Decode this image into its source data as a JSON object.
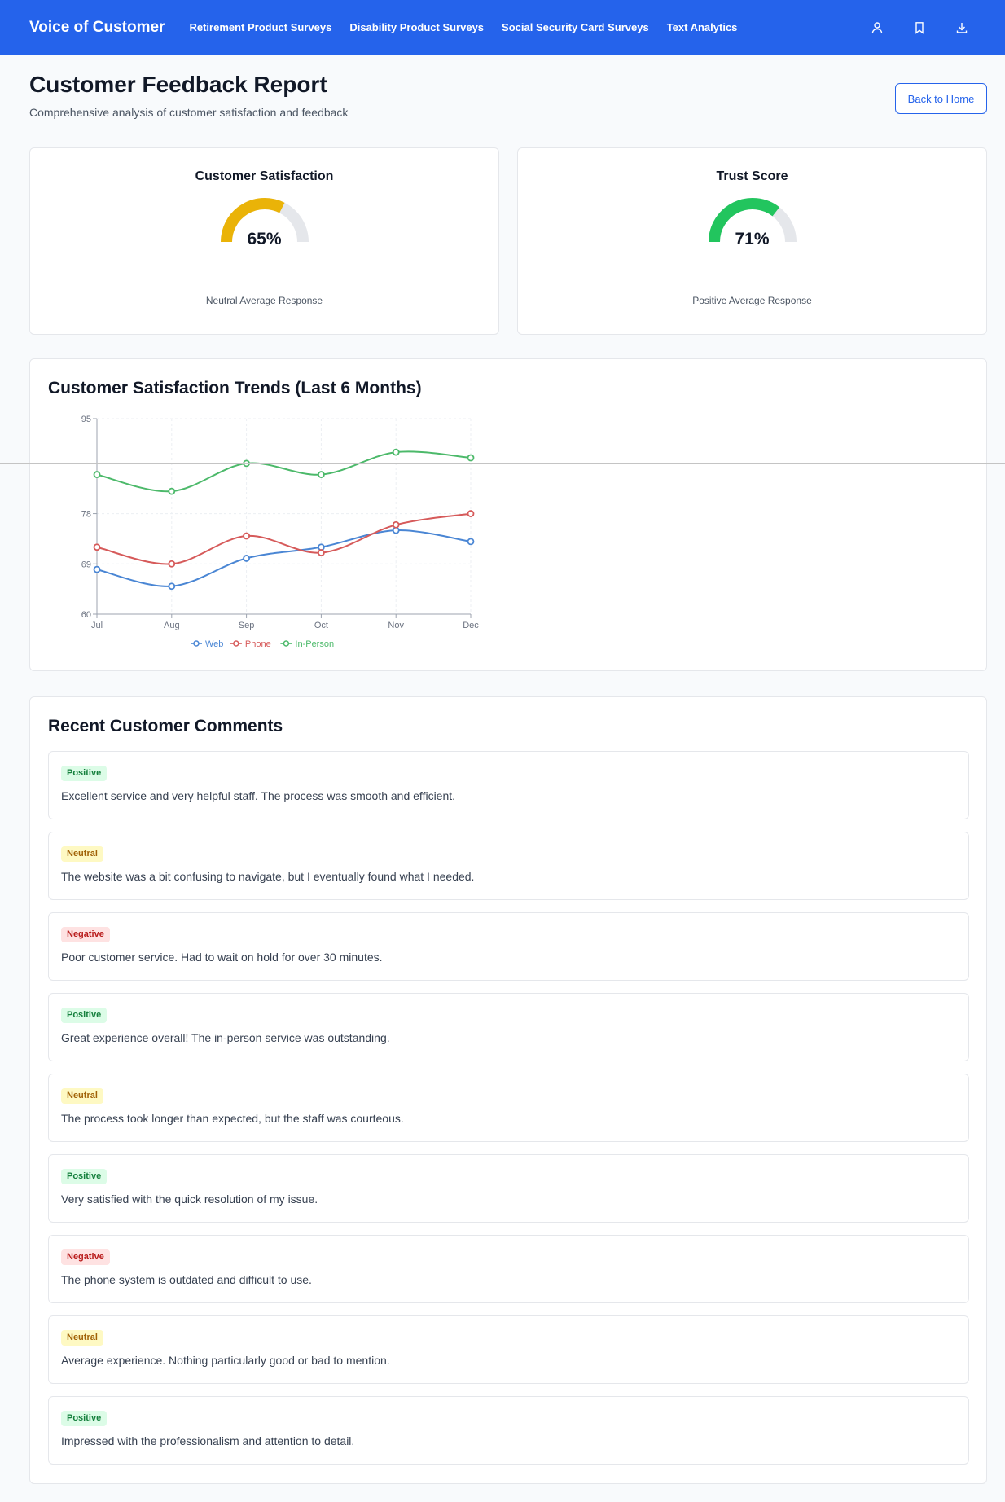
{
  "nav": {
    "brand": "Voice of Customer",
    "links": [
      "Retirement Product Surveys",
      "Disability Product Surveys",
      "Social Security Card Surveys",
      "Text Analytics"
    ],
    "icons": [
      "user-icon",
      "bookmark-icon",
      "download-icon"
    ]
  },
  "header": {
    "title": "Customer Feedback Report",
    "subtitle": "Comprehensive analysis of customer satisfaction and feedback",
    "back_label": "Back to Home"
  },
  "gauges": [
    {
      "title": "Customer Satisfaction",
      "value": 65,
      "value_label": "65%",
      "caption": "Neutral Average Response",
      "color": "#eab308"
    },
    {
      "title": "Trust Score",
      "value": 71,
      "value_label": "71%",
      "caption": "Positive Average Response",
      "color": "#22c55e"
    }
  ],
  "trends": {
    "title": "Customer Satisfaction Trends (Last 6 Months)"
  },
  "chart_data": {
    "type": "line",
    "x": [
      "Jul",
      "Aug",
      "Sep",
      "Oct",
      "Nov",
      "Dec"
    ],
    "yticks": [
      60,
      69,
      78,
      95
    ],
    "ylim": [
      60,
      95
    ],
    "grid": true,
    "legend": "bottom-center",
    "series": [
      {
        "name": "Web",
        "color": "#4a86d4",
        "values": [
          68,
          65,
          70,
          72,
          75,
          73
        ]
      },
      {
        "name": "Phone",
        "color": "#d65a5a",
        "values": [
          72,
          69,
          74,
          71,
          76,
          78
        ]
      },
      {
        "name": "In-Person",
        "color": "#4cb96a",
        "values": [
          85,
          82,
          87,
          85,
          89,
          88
        ]
      }
    ]
  },
  "comments": {
    "title": "Recent Customer Comments",
    "items": [
      {
        "sentiment": "Positive",
        "type": "positive",
        "text": "Excellent service and very helpful staff. The process was smooth and efficient."
      },
      {
        "sentiment": "Neutral",
        "type": "neutral",
        "text": "The website was a bit confusing to navigate, but I eventually found what I needed."
      },
      {
        "sentiment": "Negative",
        "type": "negative",
        "text": "Poor customer service. Had to wait on hold for over 30 minutes."
      },
      {
        "sentiment": "Positive",
        "type": "positive",
        "text": "Great experience overall! The in-person service was outstanding."
      },
      {
        "sentiment": "Neutral",
        "type": "neutral",
        "text": "The process took longer than expected, but the staff was courteous."
      },
      {
        "sentiment": "Positive",
        "type": "positive",
        "text": "Very satisfied with the quick resolution of my issue."
      },
      {
        "sentiment": "Negative",
        "type": "negative",
        "text": "The phone system is outdated and difficult to use."
      },
      {
        "sentiment": "Neutral",
        "type": "neutral",
        "text": "Average experience. Nothing particularly good or bad to mention."
      },
      {
        "sentiment": "Positive",
        "type": "positive",
        "text": "Impressed with the professionalism and attention to detail."
      }
    ]
  }
}
